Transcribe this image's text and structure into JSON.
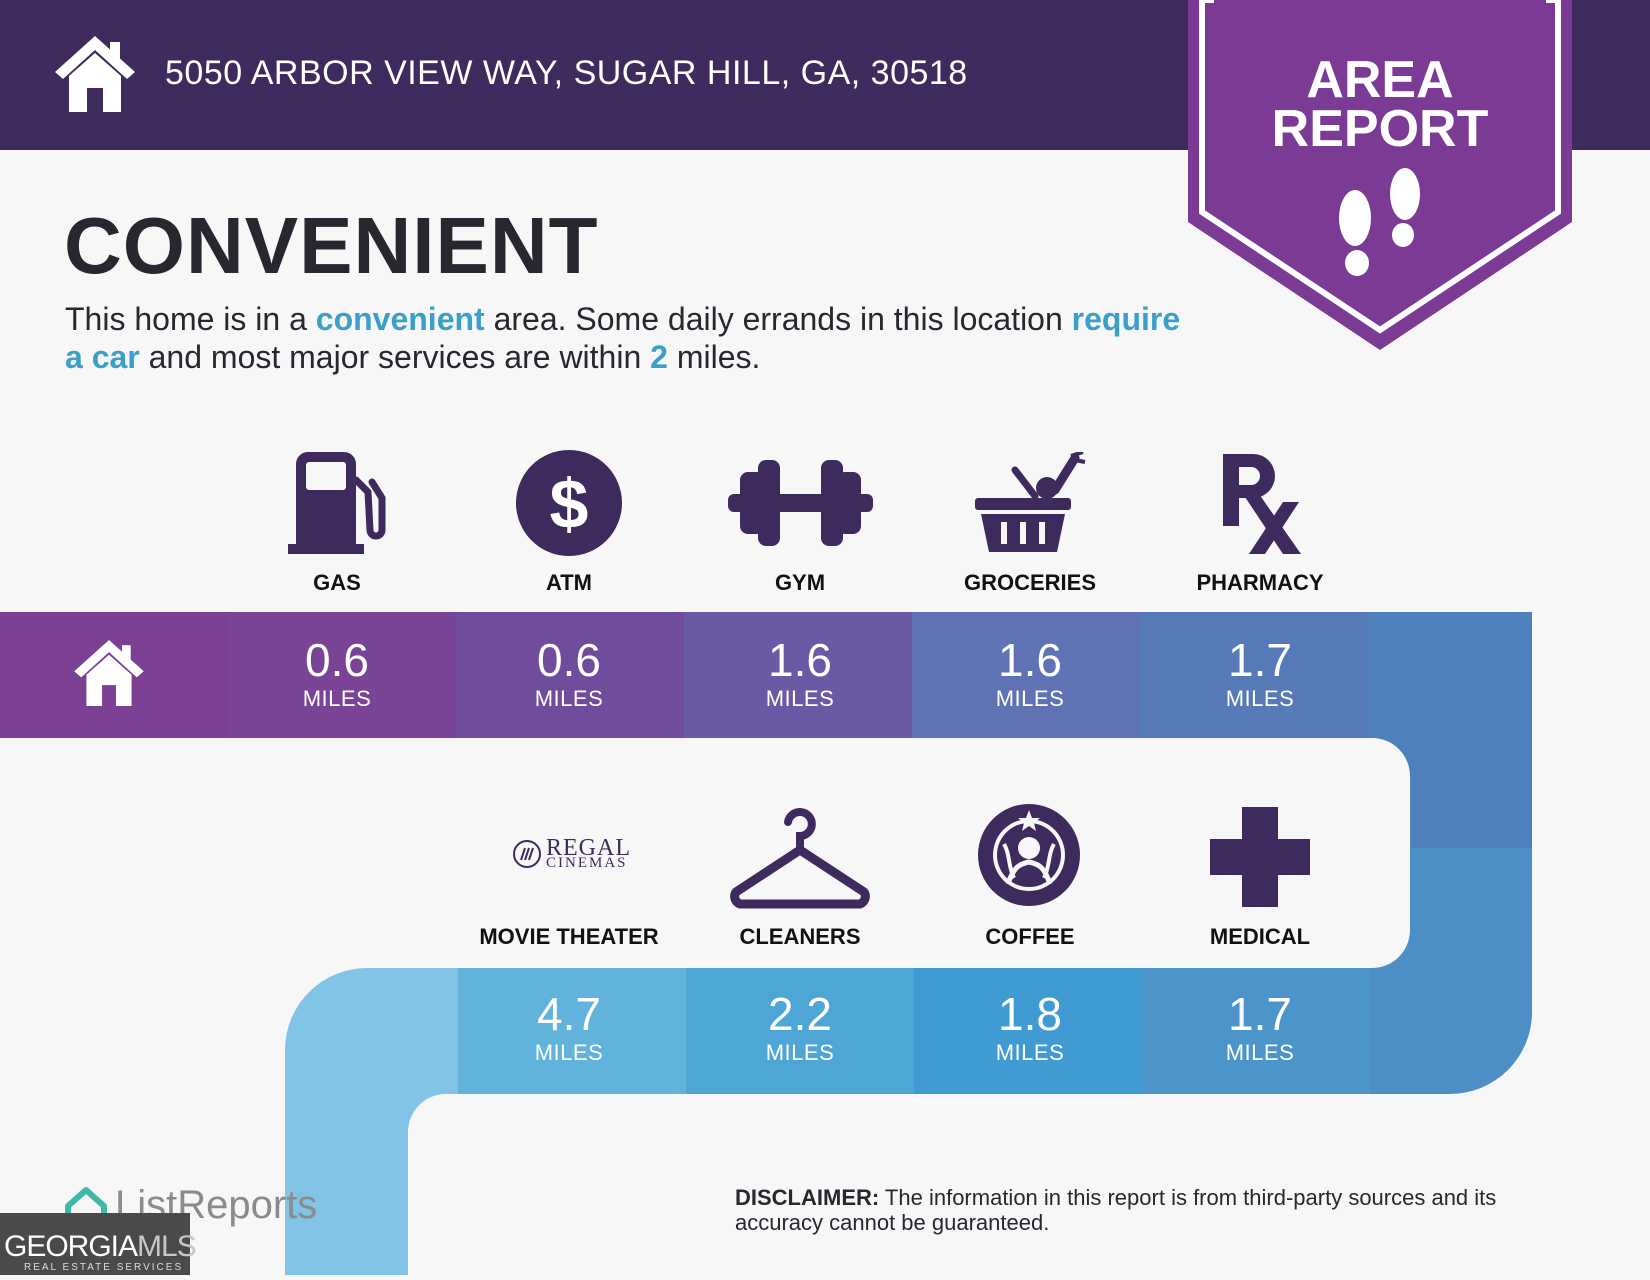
{
  "header": {
    "address": "5050 ARBOR VIEW WAY, SUGAR HILL, GA, 30518"
  },
  "badge": {
    "line1": "AREA",
    "line2": "REPORT"
  },
  "main": {
    "title": "CONVENIENT",
    "subtitle": {
      "p1": "This home is in a ",
      "h1": "convenient",
      "p2": " area. Some daily errands in this location ",
      "h2": "require a car",
      "p3": " and most major services are within ",
      "h3": "2",
      "p4": " miles."
    }
  },
  "row1": [
    {
      "label": "GAS",
      "value": "0.6",
      "unit": "MILES",
      "icon": "gas-pump-icon"
    },
    {
      "label": "ATM",
      "value": "0.6",
      "unit": "MILES",
      "icon": "dollar-icon"
    },
    {
      "label": "GYM",
      "value": "1.6",
      "unit": "MILES",
      "icon": "dumbbell-icon"
    },
    {
      "label": "GROCERIES",
      "value": "1.6",
      "unit": "MILES",
      "icon": "basket-icon"
    },
    {
      "label": "PHARMACY",
      "value": "1.7",
      "unit": "MILES",
      "icon": "rx-icon"
    }
  ],
  "row2": [
    {
      "label": "MOVIE THEATER",
      "value": "4.7",
      "unit": "MILES",
      "icon": "regal-cinemas-logo"
    },
    {
      "label": "CLEANERS",
      "value": "2.2",
      "unit": "MILES",
      "icon": "hanger-icon"
    },
    {
      "label": "COFFEE",
      "value": "1.8",
      "unit": "MILES",
      "icon": "starbucks-logo"
    },
    {
      "label": "MEDICAL",
      "value": "1.7",
      "unit": "MILES",
      "icon": "medical-cross-icon"
    }
  ],
  "logos": {
    "regal_line1": "REGAL",
    "regal_line2": "CINEMAS",
    "listreports": "ListReports",
    "georgia": "GEORGIA",
    "mls": "MLS",
    "georgia_sub": "REAL ESTATE SERVICES"
  },
  "disclaimer": {
    "label": "DISCLAIMER:",
    "text": " The information in this report is from third-party sources and its accuracy cannot be guaranteed."
  },
  "colors": {
    "header": "#3e2a5c",
    "badge": "#7b3b94",
    "row1": [
      "#7b3f94",
      "#7a4496",
      "#704c9c",
      "#6a5aa6",
      "#5e72b4",
      "#4f80be"
    ],
    "row2": [
      "#82c4e6",
      "#61b3dc",
      "#4ea6d6",
      "#3f9bd1",
      "#4b95cb",
      "#4c8fc6"
    ],
    "accent": "#3aa0c8"
  }
}
